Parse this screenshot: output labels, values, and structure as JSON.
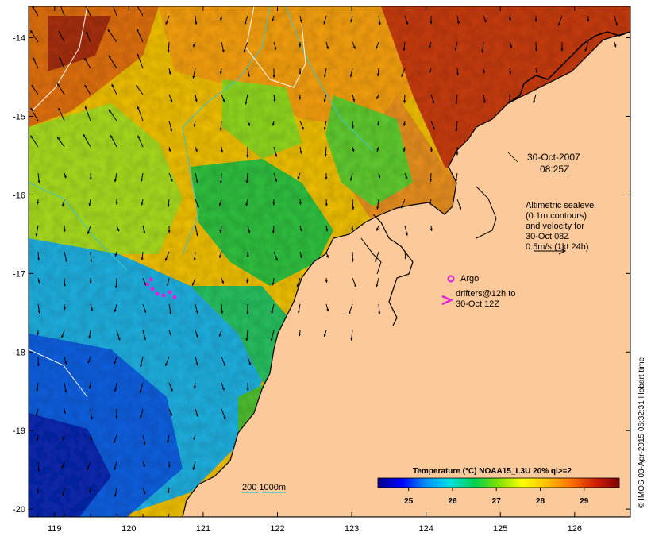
{
  "map": {
    "region": {
      "lon_range": [
        118.65,
        126.75
      ],
      "lat_range": [
        -20.1,
        -13.6
      ]
    },
    "lon_ticks": [
      119,
      120,
      121,
      122,
      123,
      124,
      125,
      126
    ],
    "lat_ticks": [
      -14,
      -15,
      -16,
      -17,
      -18,
      -19,
      -20
    ],
    "colors": {
      "land": "#fcc99a",
      "coastline": "#000000",
      "sealevel_contour": "#ffffff",
      "isobath": "#39c6cf",
      "argo": "#e020e0",
      "drifter": "#e020e0"
    }
  },
  "annotations": {
    "date_line1": "30-Oct-2007",
    "date_line2": "08:25Z",
    "legend_lines": [
      "Altimetric sealevel",
      "(0.1m contours)",
      "and velocity for",
      "30-Oct 08Z",
      "0.5m/s (1kt 24h)"
    ],
    "argo_label": "Argo",
    "drifter_label_line1": "drifters@12h to",
    "drifter_label_line2": "30-Oct 12Z",
    "isobath_label": "200  1000m"
  },
  "colorbar": {
    "title": "Temperature (°C) NOAA15_L3U 20% ql>=2",
    "range": [
      24.3,
      29.8
    ],
    "ticks": [
      25,
      26,
      27,
      28,
      29
    ],
    "stops": [
      "#00008a",
      "#0000ff",
      "#0090ff",
      "#00e0e0",
      "#00d050",
      "#80e000",
      "#ffff00",
      "#ffc000",
      "#ff7000",
      "#d02000",
      "#800000"
    ]
  },
  "credit": "© IMOS 03-Apr-2015 06:32:31 Hobart time"
}
